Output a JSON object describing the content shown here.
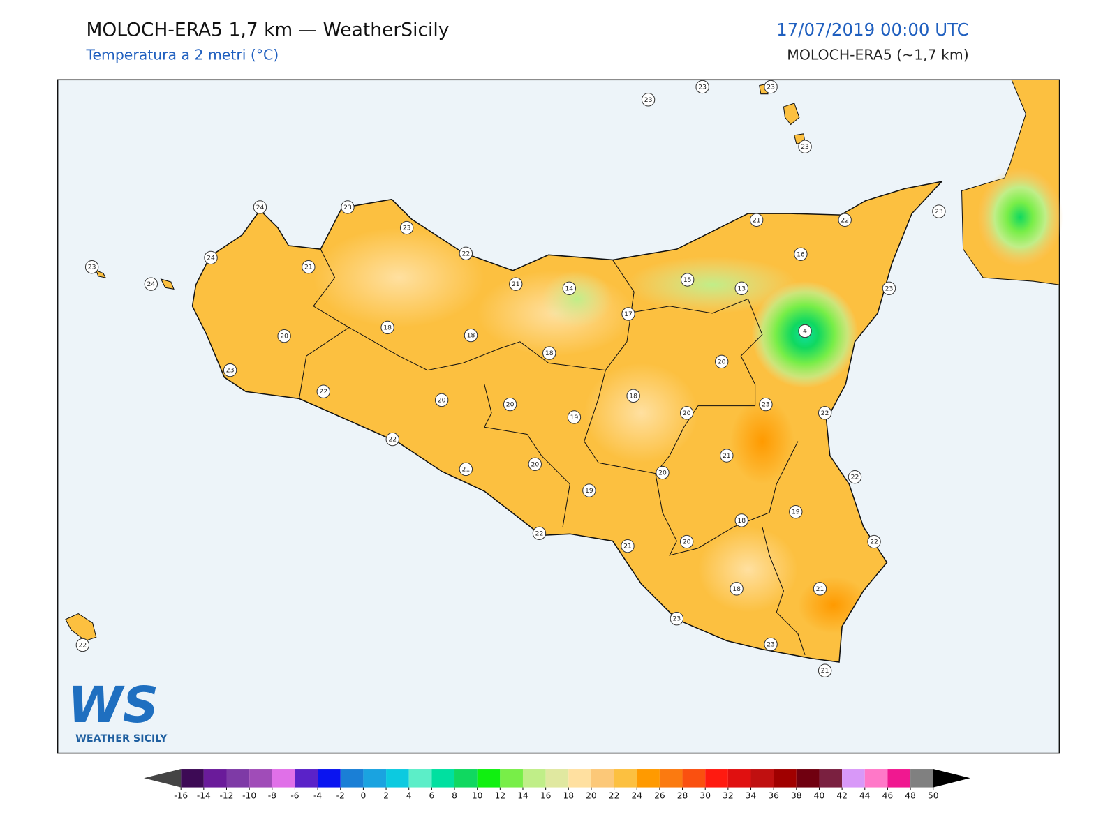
{
  "header": {
    "title": "MOLOCH-ERA5 1,7 km — WeatherSicily",
    "subtitle": "Temperatura a 2 metri (°C)",
    "datetime": "17/07/2019 00:00 UTC",
    "model": "MOLOCH-ERA5 (~1,7 km)"
  },
  "map": {
    "labels": [
      23,
      23,
      23,
      23,
      24,
      23,
      23,
      23,
      24,
      24,
      21,
      22,
      21,
      22,
      23,
      16,
      15,
      13,
      21,
      14,
      23,
      17,
      18,
      18,
      20,
      4,
      18,
      20,
      23,
      22,
      18,
      20,
      20,
      23,
      20,
      19,
      22,
      22,
      21,
      21,
      20,
      20,
      22,
      19,
      19,
      18,
      22,
      22,
      21,
      20,
      18,
      21,
      23,
      23,
      21,
      22
    ]
  },
  "colorbar": {
    "ticks": [
      -16,
      -14,
      -12,
      -10,
      -8,
      -6,
      -4,
      -2,
      0,
      2,
      4,
      6,
      8,
      10,
      12,
      14,
      16,
      18,
      20,
      22,
      24,
      26,
      28,
      30,
      32,
      34,
      36,
      38,
      40,
      42,
      44,
      46,
      48,
      50
    ],
    "colors": [
      "#3d0a55",
      "#6a1b9a",
      "#7e3aa6",
      "#a04cb8",
      "#e070e8",
      "#5a22c8",
      "#0a14f0",
      "#1a7fd6",
      "#1aa3e0",
      "#0ccae0",
      "#5ceec8",
      "#00e0a0",
      "#10d860",
      "#10f010",
      "#78ee48",
      "#c0ee88",
      "#e0e8a0",
      "#ffe0a0",
      "#fcc878",
      "#fcc040",
      "#ff9a00",
      "#fb7a10",
      "#fa5010",
      "#ff1a10",
      "#e01010",
      "#c01010",
      "#a00000",
      "#700010",
      "#7a2040",
      "#d898f8",
      "#ff78c8",
      "#f01890",
      "#808080"
    ],
    "under_color": "#444444",
    "over_color": "#000000"
  },
  "logo": {
    "mark": "WS",
    "text": "WEATHER SICILY"
  }
}
